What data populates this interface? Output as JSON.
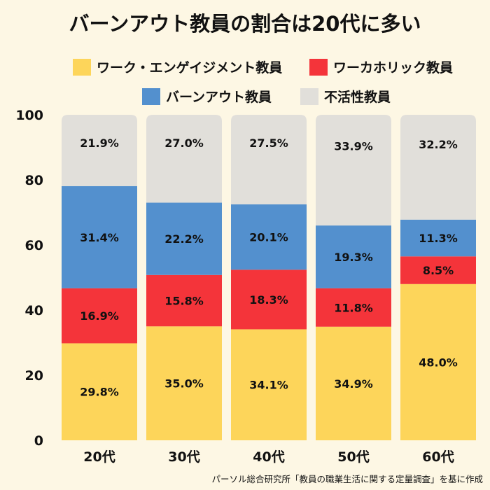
{
  "chart_data": {
    "type": "bar",
    "stacked": true,
    "title": "バーンアウト教員の割合は20代に多い",
    "categories": [
      "20代",
      "30代",
      "40代",
      "50代",
      "60代"
    ],
    "series": [
      {
        "name": "ワーク・エンゲイジメント教員",
        "color": "#FDD55A",
        "values": [
          29.8,
          35.0,
          34.1,
          34.9,
          48.0
        ],
        "labels": [
          "29.8%",
          "35.0%",
          "34.1%",
          "34.9%",
          "48.0%"
        ]
      },
      {
        "name": "ワーカホリック教員",
        "color": "#F4343A",
        "values": [
          16.9,
          15.8,
          18.3,
          11.8,
          8.5
        ],
        "labels": [
          "16.9%",
          "15.8%",
          "18.3%",
          "11.8%",
          "8.5%"
        ]
      },
      {
        "name": "バーンアウト教員",
        "color": "#5390CE",
        "values": [
          31.4,
          22.2,
          20.1,
          19.3,
          11.3
        ],
        "labels": [
          "31.4%",
          "22.2%",
          "20.1%",
          "19.3%",
          "11.3%"
        ]
      },
      {
        "name": "不活性教員",
        "color": "#E1DFDA",
        "values": [
          21.9,
          27.0,
          27.5,
          33.9,
          32.2
        ],
        "labels": [
          "21.9%",
          "27.0%",
          "27.5%",
          "33.9%",
          "32.2%"
        ]
      }
    ],
    "ylim": [
      0,
      100
    ],
    "yticks": [
      "0",
      "20",
      "40",
      "60",
      "80",
      "100"
    ],
    "ytick_values": [
      0,
      20,
      40,
      60,
      80,
      100
    ],
    "xlabel": "",
    "ylabel": "",
    "legend_position": "top",
    "source": "パーソル総合研究所「教員の職業生活に関する定量調査」を基に作成"
  }
}
